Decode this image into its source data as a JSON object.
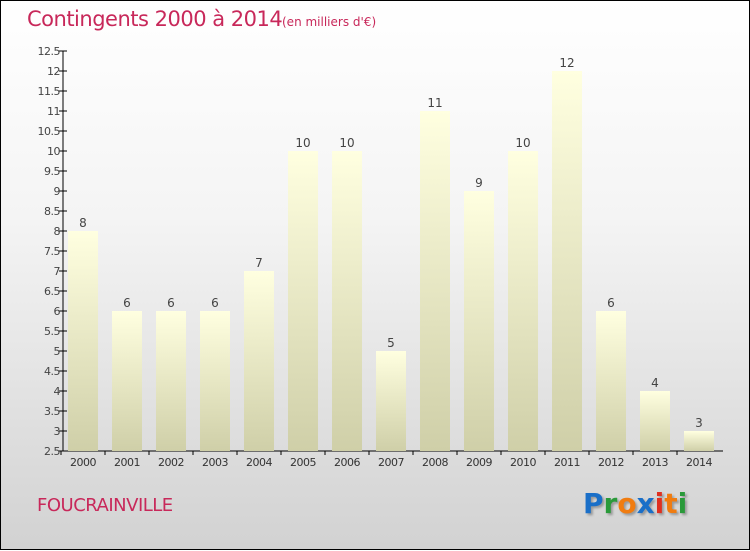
{
  "title": "Contingents 2000 à 2014",
  "subtitle": "(en milliers d'€)",
  "commune": "FOUCRAINVILLE",
  "logo": {
    "text": "Proxiti",
    "letters": [
      "P",
      "r",
      "o",
      "x",
      "i",
      "t",
      "i"
    ],
    "colors": [
      "#1a6fc8",
      "#2a9a3a",
      "#f07c10",
      "#1a6fc8",
      "#e03020",
      "#f07c10",
      "#2a9a3a"
    ]
  },
  "chart_data": {
    "type": "bar",
    "title": "Contingents 2000 à 2014",
    "xlabel": "",
    "ylabel": "(en milliers d'€)",
    "categories": [
      "2000",
      "2001",
      "2002",
      "2003",
      "2004",
      "2005",
      "2006",
      "2007",
      "2008",
      "2009",
      "2010",
      "2011",
      "2012",
      "2013",
      "2014"
    ],
    "values": [
      8,
      6,
      6,
      6,
      7,
      10,
      10,
      5,
      11,
      9,
      10,
      12,
      6,
      4,
      3
    ],
    "ylim": [
      2.5,
      12.5
    ],
    "yticks": [
      "2.5",
      "3",
      "3.5",
      "4",
      "4.5",
      "5",
      "5.5",
      "6",
      "6.5",
      "7",
      "7.5",
      "8",
      "8.5",
      "9",
      "9.5",
      "10",
      "10.5",
      "11",
      "11.5",
      "12",
      "12.5"
    ],
    "grid": false,
    "colors": {
      "bar_top": "#ffffe0",
      "bar_bottom": "#cfcfa8"
    }
  }
}
